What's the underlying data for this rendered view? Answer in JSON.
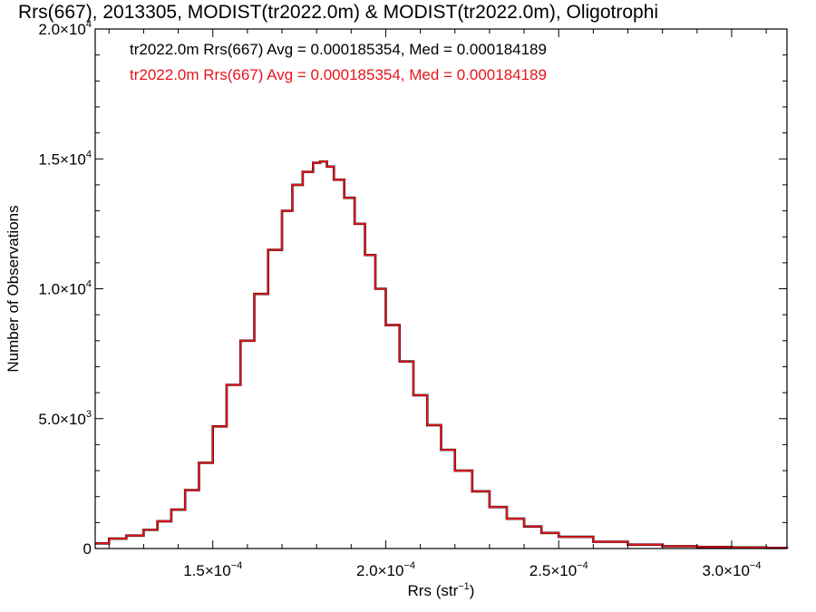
{
  "chart_data": {
    "type": "line",
    "title": "Rrs(667), 2013305, MODIST(tr2022.0m) & MODIST(tr2022.0m), Oligotrophi",
    "xlabel": "Rrs (str",
    "xlabel_sup": "−1",
    "xlabel_close": ")",
    "ylabel": "Number of Observations",
    "xlim": [
      0.000116,
      0.000316
    ],
    "ylim": [
      0,
      20000
    ],
    "x_scale_sci": true,
    "grid": false,
    "x_ticks": [
      {
        "value": 0.00015,
        "mant": "1.5×10",
        "exp": "−4"
      },
      {
        "value": 0.0002,
        "mant": "2.0×10",
        "exp": "−4"
      },
      {
        "value": 0.00025,
        "mant": "2.5×10",
        "exp": "−4"
      },
      {
        "value": 0.0003,
        "mant": "3.0×10",
        "exp": "−4"
      }
    ],
    "y_ticks": [
      {
        "value": 0,
        "mant": "0",
        "exp": ""
      },
      {
        "value": 5000,
        "mant": "5.0×10",
        "exp": "3"
      },
      {
        "value": 10000,
        "mant": "1.0×10",
        "exp": "4"
      },
      {
        "value": 15000,
        "mant": "1.5×10",
        "exp": "4"
      },
      {
        "value": 20000,
        "mant": "2.0×10",
        "exp": "4"
      }
    ],
    "annotations": [
      {
        "text": "tr2022.0m Rrs(667) Avg = 0.000185354, Med = 0.000184189",
        "color": "#000000"
      },
      {
        "text": "tr2022.0m Rrs(667) Avg = 0.000185354, Med = 0.000184189",
        "color": "#e8141c"
      }
    ],
    "series": [
      {
        "color": "#e8141c",
        "overlay_color": "#000000",
        "step": true,
        "x": [
          0.000116,
          0.00012,
          0.000125,
          0.00013,
          0.000134,
          0.000138,
          0.000142,
          0.000146,
          0.00015,
          0.000154,
          0.000158,
          0.000162,
          0.000166,
          0.00017,
          0.000173,
          0.000176,
          0.000179,
          0.000181,
          0.000183,
          0.000185,
          0.000188,
          0.000191,
          0.000194,
          0.000197,
          0.0002,
          0.000204,
          0.000208,
          0.000212,
          0.000216,
          0.00022,
          0.000225,
          0.00023,
          0.000235,
          0.00024,
          0.000245,
          0.00025,
          0.00026,
          0.00027,
          0.00028,
          0.00029,
          0.0003,
          0.00031,
          0.000316
        ],
        "y": [
          200,
          380,
          500,
          720,
          1050,
          1500,
          2250,
          3300,
          4700,
          6300,
          8000,
          9800,
          11500,
          13000,
          14000,
          14500,
          14850,
          14900,
          14700,
          14200,
          13500,
          12500,
          11300,
          10000,
          8600,
          7200,
          5900,
          4750,
          3800,
          3000,
          2200,
          1600,
          1150,
          850,
          600,
          450,
          260,
          150,
          90,
          60,
          40,
          25,
          15
        ]
      }
    ]
  }
}
